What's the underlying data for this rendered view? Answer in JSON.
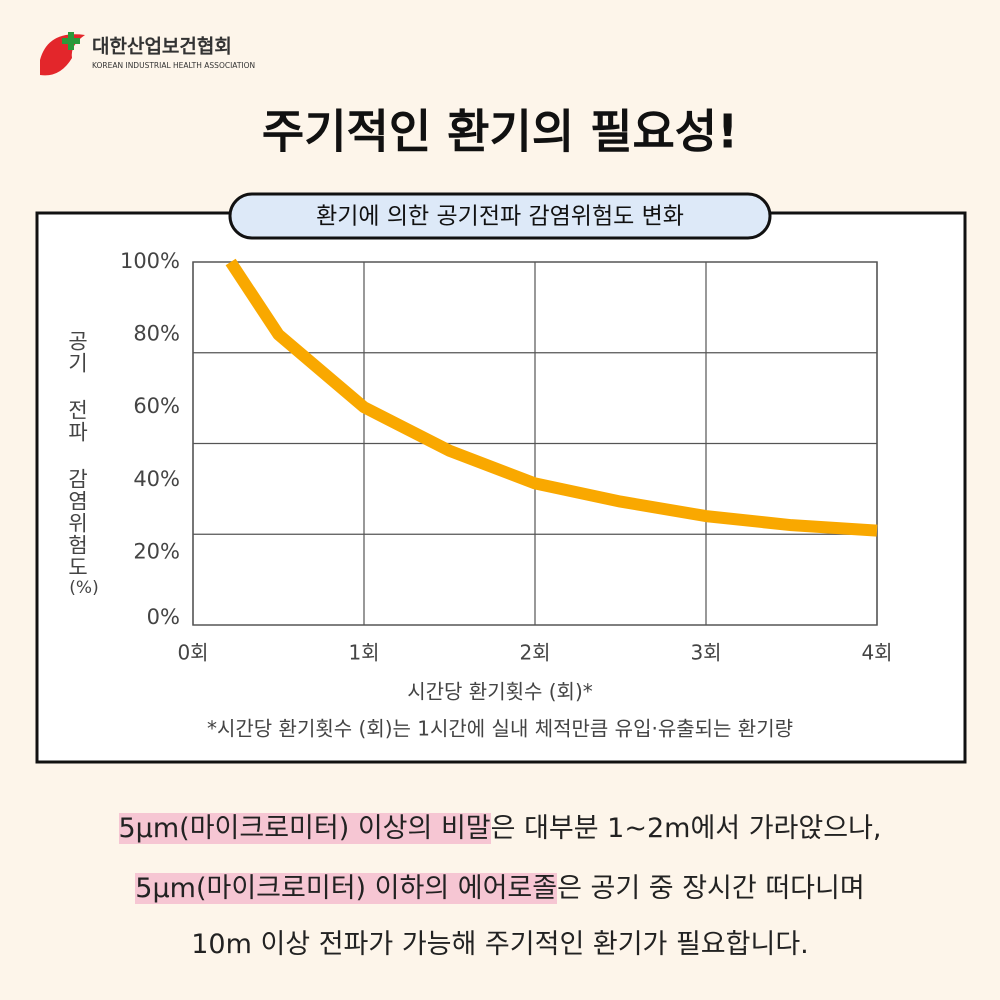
{
  "header": {
    "org_name": "대한산업보건협회",
    "org_name_en": "KOREAN INDUSTRIAL HEALTH ASSOCIATION",
    "title": "주기적인 환기의 필요성!"
  },
  "chart_data": {
    "type": "line",
    "title": "환기에 의한 공기전파 감염위험도 변화",
    "y_label": "공기 전파 감염위험도",
    "y_unit": "(%)",
    "x_label": "시간당 환기횟수 (회)*",
    "note": "*시간당 환기횟수 (회)는 1시간에 실내 체적만큼 유입·유출되는 환기량",
    "x": [
      0.22,
      0.5,
      1,
      1.5,
      2,
      2.5,
      3,
      3.5,
      4
    ],
    "series": [
      {
        "color": "#f9a800",
        "values": [
          100,
          80,
          60,
          48,
          39,
          34,
          30,
          27.5,
          26
        ]
      }
    ],
    "xlim": [
      0,
      4
    ],
    "xticks": [
      {
        "value": 0,
        "label": "0회"
      },
      {
        "value": 1,
        "label": "1회"
      },
      {
        "value": 2,
        "label": "2회"
      },
      {
        "value": 3,
        "label": "3회"
      },
      {
        "value": 4,
        "label": "4회"
      }
    ],
    "ylim": [
      0,
      100
    ],
    "yticks": [
      {
        "value": 0,
        "label": "0%"
      },
      {
        "value": 20,
        "label": "20%"
      },
      {
        "value": 40,
        "label": "40%"
      },
      {
        "value": 60,
        "label": "60%"
      },
      {
        "value": 80,
        "label": "80%"
      },
      {
        "value": 100,
        "label": "100%"
      }
    ],
    "grid": true
  },
  "footer": {
    "lines": [
      {
        "highlight": "5µm(마이크로미터) 이상의 비말",
        "rest": "은 대부분 1~2m에서 가라앉으나,"
      },
      {
        "highlight": "5µm(마이크로미터) 이하의 에어로졸",
        "rest": "은 공기 중 장시간 떠다니며"
      },
      {
        "highlight": null,
        "rest": "10m 이상 전파가 가능해 주기적인 환기가 필요합니다."
      }
    ]
  }
}
